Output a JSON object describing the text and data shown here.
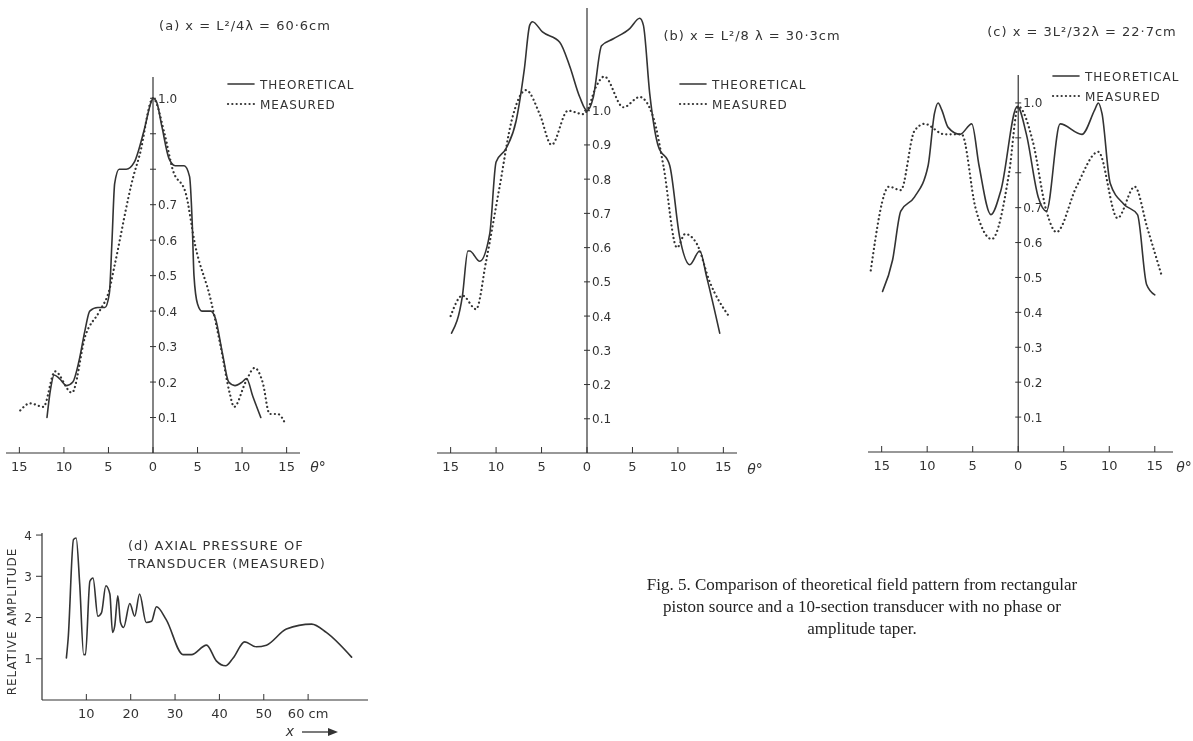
{
  "chart_data": [
    {
      "type": "line",
      "title": "(a)  x =  L²/4λ = 60·6cm",
      "xlabel": "θ°",
      "legend": "top right",
      "xlim": [
        -16.5,
        16.5
      ],
      "ylim": [
        0,
        1.06
      ],
      "xticks": [
        {
          "value": -15,
          "label": "15"
        },
        {
          "value": -10,
          "label": "10"
        },
        {
          "value": -5,
          "label": "5"
        },
        0,
        5,
        10,
        15
      ],
      "yticks": [
        0.1,
        0.2,
        0.3,
        0.4,
        0.5,
        0.6,
        0.7,
        {
          "value": 0.8,
          "label": null
        },
        {
          "value": 0.9,
          "label": null
        },
        {
          "value": 1,
          "label": "1.0"
        }
      ],
      "series": [
        {
          "name": "THEORETICAL",
          "color": "#333333",
          "line_style": "solid",
          "x": [
            -11.9,
            -11.5,
            -11.1,
            -10.5,
            -9.7,
            -9.0,
            -8.3,
            -7.6,
            -7.1,
            -6.2,
            -5.4,
            -4.9,
            -4.6,
            -4.3,
            -3.8,
            -3.0,
            -2.1,
            -1.0,
            -0.2,
            0,
            0.4,
            1.0,
            1.8,
            2.5,
            3.5,
            4.1,
            4.4,
            4.6,
            5.0,
            5.5,
            6.5,
            7.0,
            7.8,
            8.5,
            9.2,
            10.0,
            10.5,
            11.2,
            12.1
          ],
          "values": [
            0.1,
            0.18,
            0.22,
            0.21,
            0.19,
            0.2,
            0.26,
            0.35,
            0.4,
            0.41,
            0.41,
            0.45,
            0.6,
            0.76,
            0.8,
            0.8,
            0.82,
            0.91,
            0.99,
            1.0,
            0.99,
            0.92,
            0.83,
            0.81,
            0.81,
            0.78,
            0.65,
            0.5,
            0.42,
            0.4,
            0.4,
            0.38,
            0.28,
            0.2,
            0.19,
            0.2,
            0.21,
            0.16,
            0.1
          ]
        },
        {
          "name": "MEASURED",
          "color": "#333333",
          "line_style": "dotted",
          "x": [
            -14.9,
            -13.8,
            -12.3,
            -11.0,
            -9.1,
            -7.6,
            -6.0,
            -4.9,
            -4.3,
            -2.2,
            -1.5,
            0,
            1.3,
            2.2,
            3.7,
            4.7,
            6.5,
            7.6,
            8.6,
            9.1,
            10.4,
            11.4,
            12.3,
            13.1,
            14.0,
            14.9
          ],
          "values": [
            0.12,
            0.14,
            0.13,
            0.23,
            0.17,
            0.33,
            0.4,
            0.46,
            0.53,
            0.78,
            0.84,
            1.0,
            0.9,
            0.8,
            0.73,
            0.59,
            0.43,
            0.3,
            0.17,
            0.13,
            0.2,
            0.24,
            0.2,
            0.11,
            0.11,
            0.08
          ]
        }
      ]
    },
    {
      "type": "line",
      "title": "(b)  x =  L²/8  λ = 30·3cm",
      "xlabel": "θ°",
      "legend": "top right",
      "xlim": [
        -16.5,
        16.5
      ],
      "ylim": [
        0,
        1.3
      ],
      "xticks": [
        {
          "value": -15,
          "label": "15"
        },
        {
          "value": -10,
          "label": "10"
        },
        {
          "value": -5,
          "label": "5"
        },
        0,
        5,
        10,
        15
      ],
      "yticks": [
        0.1,
        0.2,
        0.3,
        0.4,
        0.5,
        0.6,
        0.7,
        0.8,
        0.9,
        {
          "value": 1,
          "label": "1.0"
        }
      ],
      "series": [
        {
          "name": "THEORETICAL",
          "color": "#333333",
          "line_style": "solid",
          "x": [
            -14.9,
            -13.7,
            -13.1,
            -12.9,
            -11.8,
            -10.7,
            -10.0,
            -8.9,
            -7.8,
            -6.9,
            -6.3,
            -6.0,
            -4.9,
            -3.0,
            -1.9,
            -0.8,
            0,
            0.7,
            1.6,
            2.9,
            4.7,
            5.8,
            6.2,
            6.9,
            7.8,
            9.1,
            10.2,
            11.3,
            12.4,
            13.2,
            14.6
          ],
          "values": [
            0.35,
            0.46,
            0.59,
            0.59,
            0.56,
            0.64,
            0.85,
            0.89,
            0.97,
            1.12,
            1.25,
            1.26,
            1.23,
            1.2,
            1.13,
            1.04,
            1.0,
            1.04,
            1.19,
            1.21,
            1.24,
            1.27,
            1.25,
            1.05,
            0.9,
            0.84,
            0.63,
            0.55,
            0.59,
            0.51,
            0.35
          ]
        },
        {
          "name": "MEASURED",
          "color": "#333333",
          "line_style": "dotted",
          "x": [
            -15.0,
            -13.7,
            -12.2,
            -11.1,
            -9.6,
            -8.3,
            -6.7,
            -5.2,
            -3.9,
            -2.1,
            -0.4,
            0,
            1.0,
            1.9,
            4.0,
            5.8,
            7.3,
            8.4,
            9.9,
            10.8,
            12.1,
            13.5,
            15.6
          ],
          "values": [
            0.4,
            0.46,
            0.42,
            0.56,
            0.78,
            0.97,
            1.06,
            0.99,
            0.9,
            1.0,
            0.99,
            1.0,
            1.07,
            1.1,
            1.01,
            1.04,
            0.98,
            0.84,
            0.6,
            0.64,
            0.61,
            0.5,
            0.4
          ]
        }
      ]
    },
    {
      "type": "line",
      "title": "(c)  x =  3L²/32λ = 22·7cm",
      "xlabel": "θ°",
      "legend": "top right",
      "xlim": [
        -16.5,
        17
      ],
      "ylim": [
        0,
        1.08
      ],
      "xticks": [
        {
          "value": -15,
          "label": "15"
        },
        {
          "value": -10,
          "label": "10"
        },
        {
          "value": -5,
          "label": "5"
        },
        0,
        5,
        10,
        15
      ],
      "yticks": [
        0.1,
        0.2,
        0.3,
        0.4,
        0.5,
        0.6,
        0.7,
        {
          "value": 0.8,
          "label": null
        },
        {
          "value": 0.9,
          "label": null
        },
        {
          "value": 1,
          "label": "1.0"
        }
      ],
      "series": [
        {
          "name": "THEORETICAL",
          "color": "#333333",
          "line_style": "solid",
          "x": [
            -14.9,
            -13.8,
            -12.9,
            -11.4,
            -9.9,
            -9.2,
            -8.8,
            -8.4,
            -7.7,
            -6.4,
            -5.1,
            -4.3,
            -3.0,
            -1.9,
            -0.1,
            0.9,
            2.2,
            3.1,
            4.6,
            7.0,
            8.4,
            8.8,
            9.2,
            10.1,
            11.6,
            13.1,
            14.1,
            15.0
          ],
          "values": [
            0.46,
            0.55,
            0.69,
            0.73,
            0.82,
            0.97,
            1.0,
            0.98,
            0.93,
            0.91,
            0.94,
            0.82,
            0.68,
            0.75,
            0.99,
            0.91,
            0.73,
            0.69,
            0.94,
            0.91,
            0.98,
            1.0,
            0.97,
            0.77,
            0.71,
            0.68,
            0.48,
            0.45
          ]
        },
        {
          "name": "MEASURED",
          "color": "#333333",
          "line_style": "dotted",
          "x": [
            -16.2,
            -14.2,
            -12.9,
            -11.4,
            -10.3,
            -8.1,
            -6.2,
            -4.7,
            -2.9,
            -1.0,
            0,
            1.6,
            3.1,
            4.2,
            6.4,
            8.8,
            10.9,
            12.8,
            14.2,
            15.7
          ],
          "values": [
            0.52,
            0.76,
            0.75,
            0.92,
            0.94,
            0.91,
            0.91,
            0.7,
            0.61,
            0.8,
            0.99,
            0.89,
            0.69,
            0.63,
            0.76,
            0.86,
            0.67,
            0.76,
            0.64,
            0.51
          ]
        }
      ]
    },
    {
      "type": "line",
      "title": "(d) AXIAL PRESSURE OF TRANSDUCER (MEASURED)",
      "xlabel": "x",
      "ylabel": "RELATIVE AMPLITUDE",
      "xlim": [
        0,
        73.5
      ],
      "ylim": [
        0,
        4.05
      ],
      "xticks": [
        10,
        20,
        30,
        40,
        50,
        {
          "value": 60,
          "label": "60 cm"
        }
      ],
      "yticks": [
        1,
        2,
        3,
        4
      ],
      "annotations": [
        "Fig. 5. Comparison of theoretical field pattern from rectangular piston source and a 10-section transducer with no phase or amplitude taper."
      ],
      "series": [
        {
          "color": "#333333",
          "x": [
            5.5,
            5.9,
            7.1,
            7.7,
            8.5,
            9.4,
            9.8,
            10.8,
            11.5,
            12.6,
            13.4,
            14.4,
            15.3,
            15.9,
            16.4,
            17.1,
            17.7,
            18.4,
            19.8,
            20.9,
            22.0,
            23.5,
            24.7,
            25.8,
            28.0,
            31.8,
            33.7,
            37.1,
            39.3,
            41.4,
            43.1,
            45.7,
            48.3,
            50.6,
            55.1,
            60.8,
            64.1,
            69.8
          ],
          "values": [
            1.02,
            1.49,
            3.89,
            3.93,
            2.81,
            1.1,
            1.1,
            2.88,
            2.96,
            2.03,
            2.11,
            2.77,
            2.57,
            1.64,
            1.8,
            2.53,
            1.88,
            1.76,
            2.34,
            2.03,
            2.57,
            1.88,
            1.91,
            2.26,
            1.95,
            1.1,
            1.1,
            1.33,
            0.95,
            0.83,
            1.02,
            1.41,
            1.29,
            1.33,
            1.72,
            1.84,
            1.64,
            1.04
          ]
        }
      ]
    }
  ]
}
